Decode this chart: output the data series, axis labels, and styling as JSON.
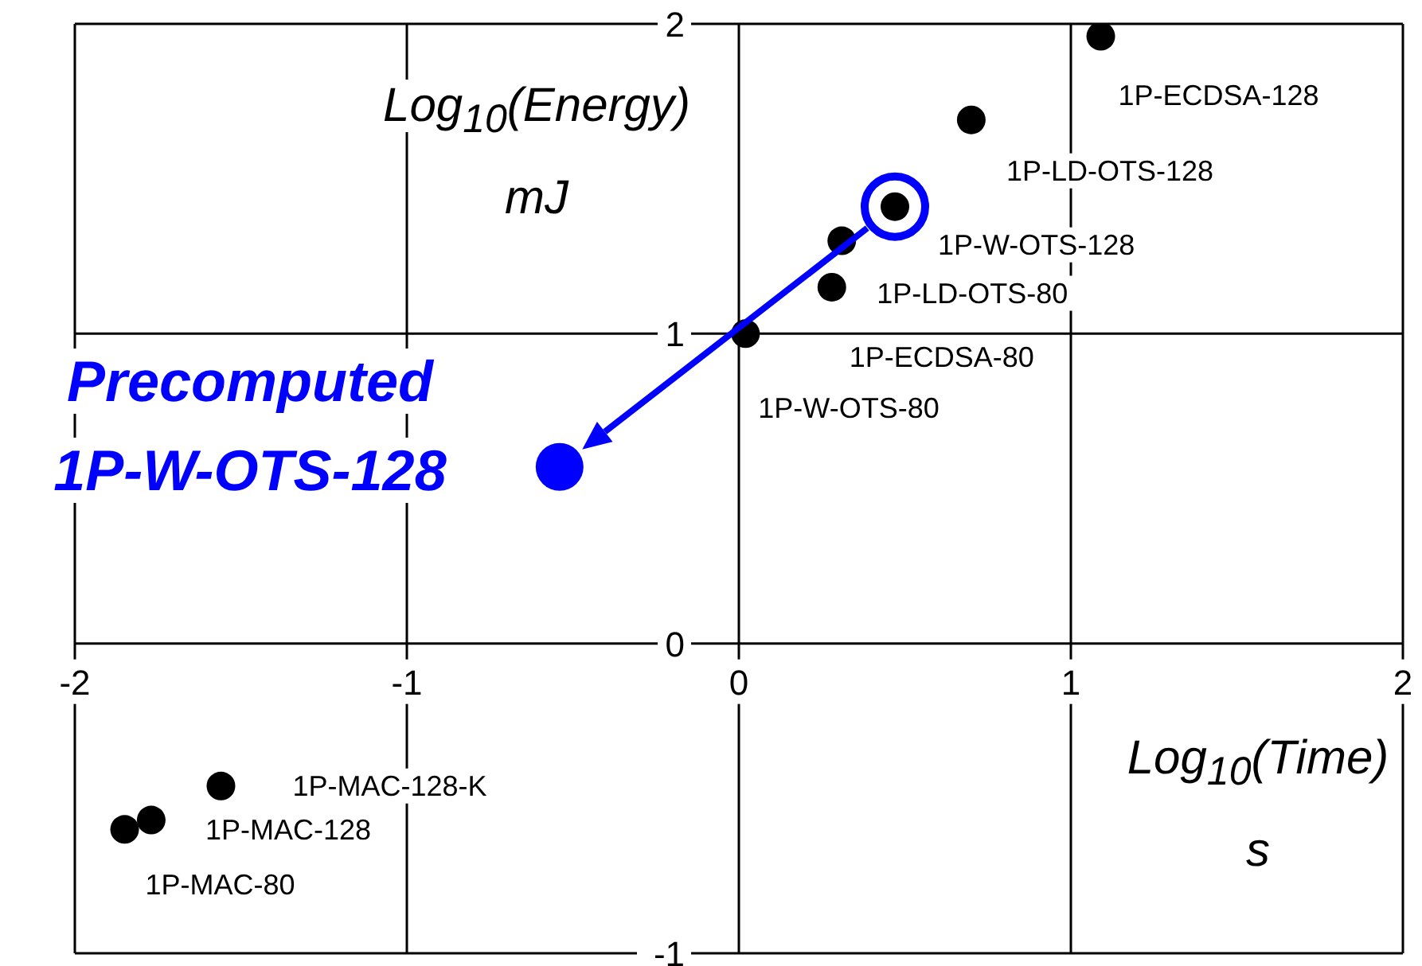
{
  "chart_data": {
    "type": "scatter",
    "xlabel": "Log$_{10}$(Time) s",
    "ylabel": "Log$_{10}$(Energy) mJ",
    "xlim": [
      -2,
      2
    ],
    "xticks": [
      -2,
      -1,
      0,
      1,
      2
    ],
    "ylim": [
      -1,
      2
    ],
    "yticks": [
      -1,
      0,
      1,
      2
    ],
    "grid": true,
    "legend": "left",
    "marker": "circle",
    "series": [
      {
        "color": "#000000",
        "x": [
          1.09,
          0.7,
          0.47,
          0.31,
          0.28,
          0.02,
          -1.56,
          -1.77,
          -1.85
        ],
        "values": [
          1.96,
          1.69,
          1.41,
          1.3,
          1.15,
          1.0,
          -0.46,
          -0.57,
          -0.6
        ]
      },
      {
        "name": "Precomputed 1P-W-OTS-128",
        "color": "#0000ff",
        "x": [
          -0.54
        ],
        "values": [
          0.57
        ]
      }
    ],
    "annotations": [
      {
        "text": "1P-ECDSA-128",
        "x": 1.09,
        "y": 1.96
      },
      {
        "text": "1P-LD-OTS-128",
        "x": 0.7,
        "y": 1.69
      },
      {
        "text": "1P-W-OTS-128",
        "x": 0.47,
        "y": 1.41
      },
      {
        "text": "1P-LD-OTS-80",
        "x": 0.31,
        "y": 1.3
      },
      {
        "text": "1P-ECDSA-80",
        "x": 0.28,
        "y": 1.15
      },
      {
        "text": "1P-W-OTS-80",
        "x": 0.02,
        "y": 1.0
      },
      {
        "text": "1P-MAC-128-K",
        "x": -1.56,
        "y": -0.46
      },
      {
        "text": "1P-MAC-128",
        "x": -1.77,
        "y": -0.57
      },
      {
        "text": "1P-MAC-80",
        "x": -1.85,
        "y": -0.6
      }
    ]
  }
}
